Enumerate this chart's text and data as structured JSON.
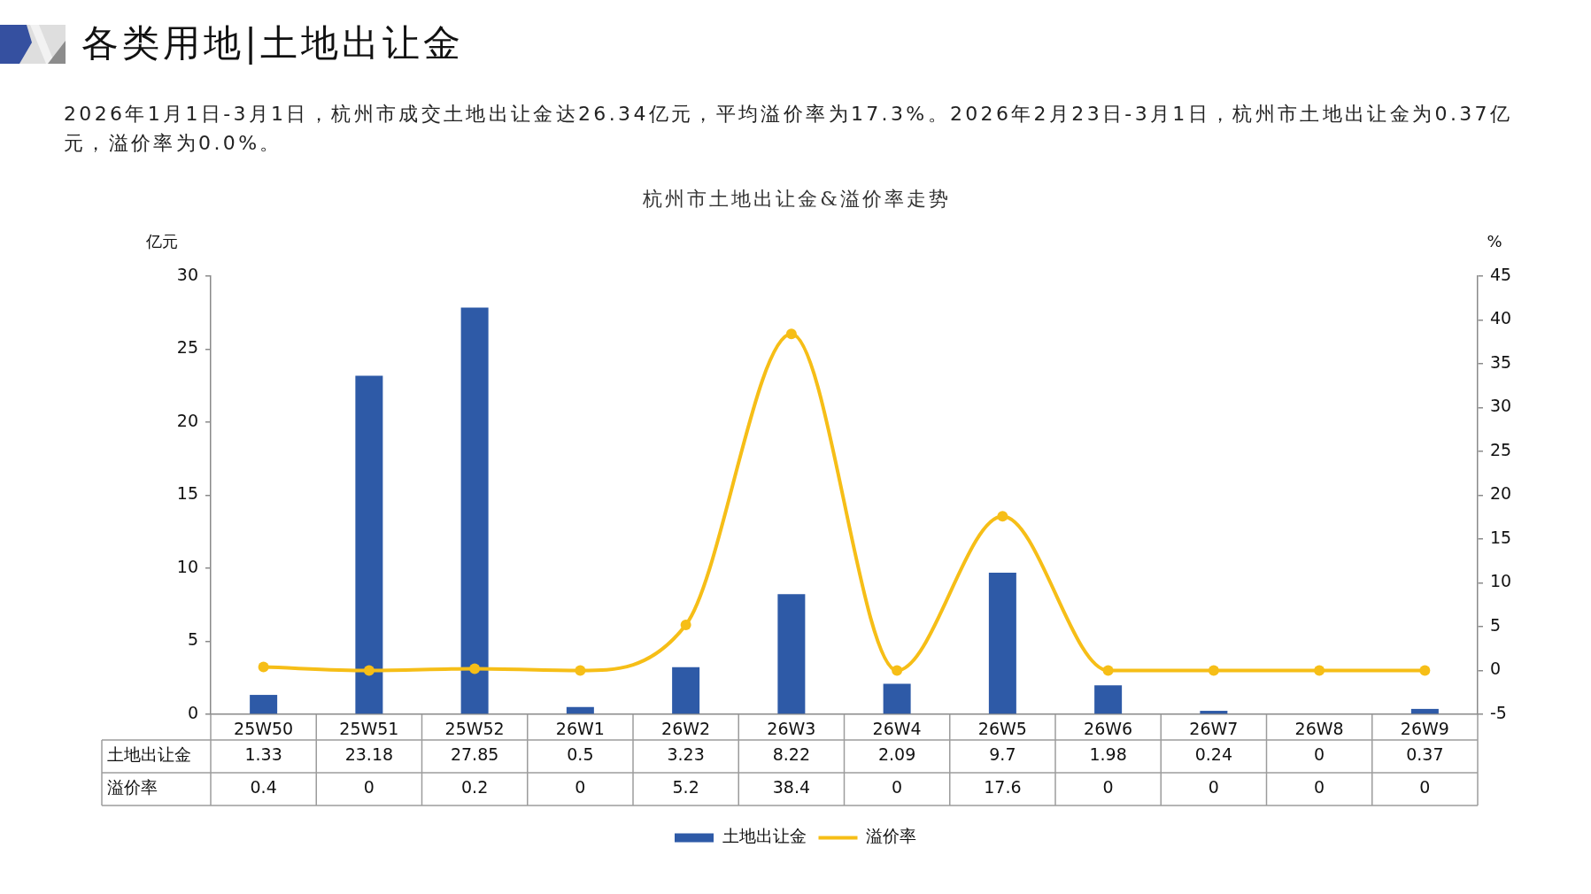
{
  "chart_data": {
    "type": "bar",
    "title": "各类用地|土地出让金",
    "subtitle": "2026年1月1日-3月1日，杭州市成交土地出让金达26.34亿元，平均溢价率为17.3%。2026年2月23日-3月1日，杭州市土地出让金为0.37亿元，溢价率为0.0%。",
    "annotations": [
      "杭州市土地出让金&溢价率走势"
    ],
    "ylabel": "亿元",
    "y2label": "%",
    "categories": [
      "25W50",
      "25W51",
      "25W52",
      "26W1",
      "26W2",
      "26W3",
      "26W4",
      "26W5",
      "26W6",
      "26W7",
      "26W8",
      "26W9"
    ],
    "series": [
      {
        "name": "土地出让金",
        "color": "#2e5aa7",
        "values": [
          1.33,
          23.18,
          27.85,
          0.5,
          3.23,
          8.22,
          2.09,
          9.7,
          1.98,
          0.24,
          0,
          0.37
        ]
      },
      {
        "name": "溢价率",
        "type": "line",
        "axis": "y2",
        "color": "#f6be17",
        "values": [
          0.4,
          0,
          0.2,
          0,
          5.2,
          38.4,
          0,
          17.6,
          0,
          0,
          0,
          0
        ]
      }
    ],
    "ylim": [
      0,
      30
    ],
    "yticks": [
      0,
      5,
      10,
      15,
      20,
      25,
      30
    ],
    "y2lim": [
      -5,
      45
    ],
    "y2ticks": [
      -5,
      0,
      5,
      10,
      15,
      20,
      25,
      30,
      35,
      40,
      45
    ],
    "grid": false,
    "legend": "bottom",
    "marker": "circle",
    "line_style": "solid",
    "data_labels": true
  }
}
